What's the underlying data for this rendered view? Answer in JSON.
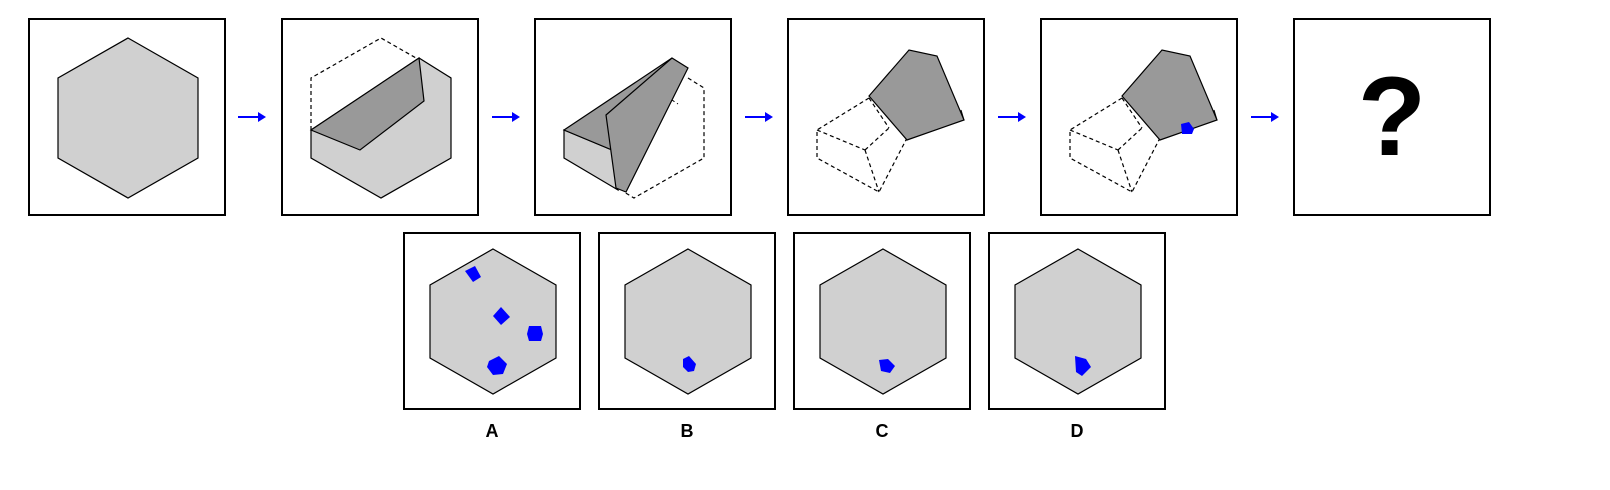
{
  "sequence": {
    "question_mark": "?"
  },
  "options": [
    {
      "label": "A"
    },
    {
      "label": "B"
    },
    {
      "label": "C"
    },
    {
      "label": "D"
    }
  ],
  "colors": {
    "paper_fill": "#d0d0d0",
    "fold_fill": "#999999",
    "mark": "#0000ff",
    "arrow": "#0000ff",
    "outline": "#000000"
  },
  "icons": {
    "arrow": "right-arrow-icon"
  }
}
